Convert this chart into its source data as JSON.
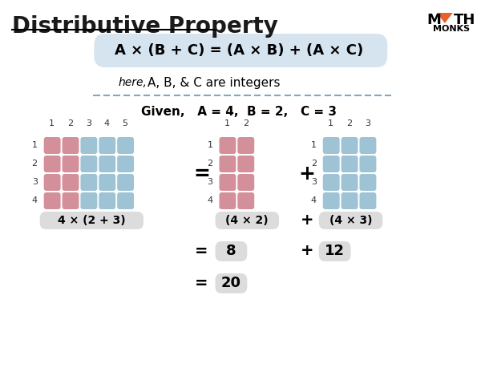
{
  "title": "Distributive Property",
  "formula": "A × (B + C) = (A × B) + (A × C)",
  "here_text": "here,",
  "integers_text": "A, B, & C are integers",
  "given_text": "Given,   A = 4,  B = 2,   C = 3",
  "label1": "4 × (2 + 3)",
  "label2": "(4 × 2)",
  "label3": "(4 × 3)",
  "eq1": "8",
  "eq2": "12",
  "eq3": "20",
  "pink_color": "#D4909A",
  "blue_color": "#9DC3D4",
  "box_bg": "#E8EEF2",
  "formula_box_bg": "#D6E4F0",
  "label_box_bg": "#DCDCDC",
  "dashed_color": "#7AAAC8",
  "bg_color": "#FFFFFF",
  "title_color": "#1a1a1a",
  "mathmonks_orange": "#E8612A"
}
